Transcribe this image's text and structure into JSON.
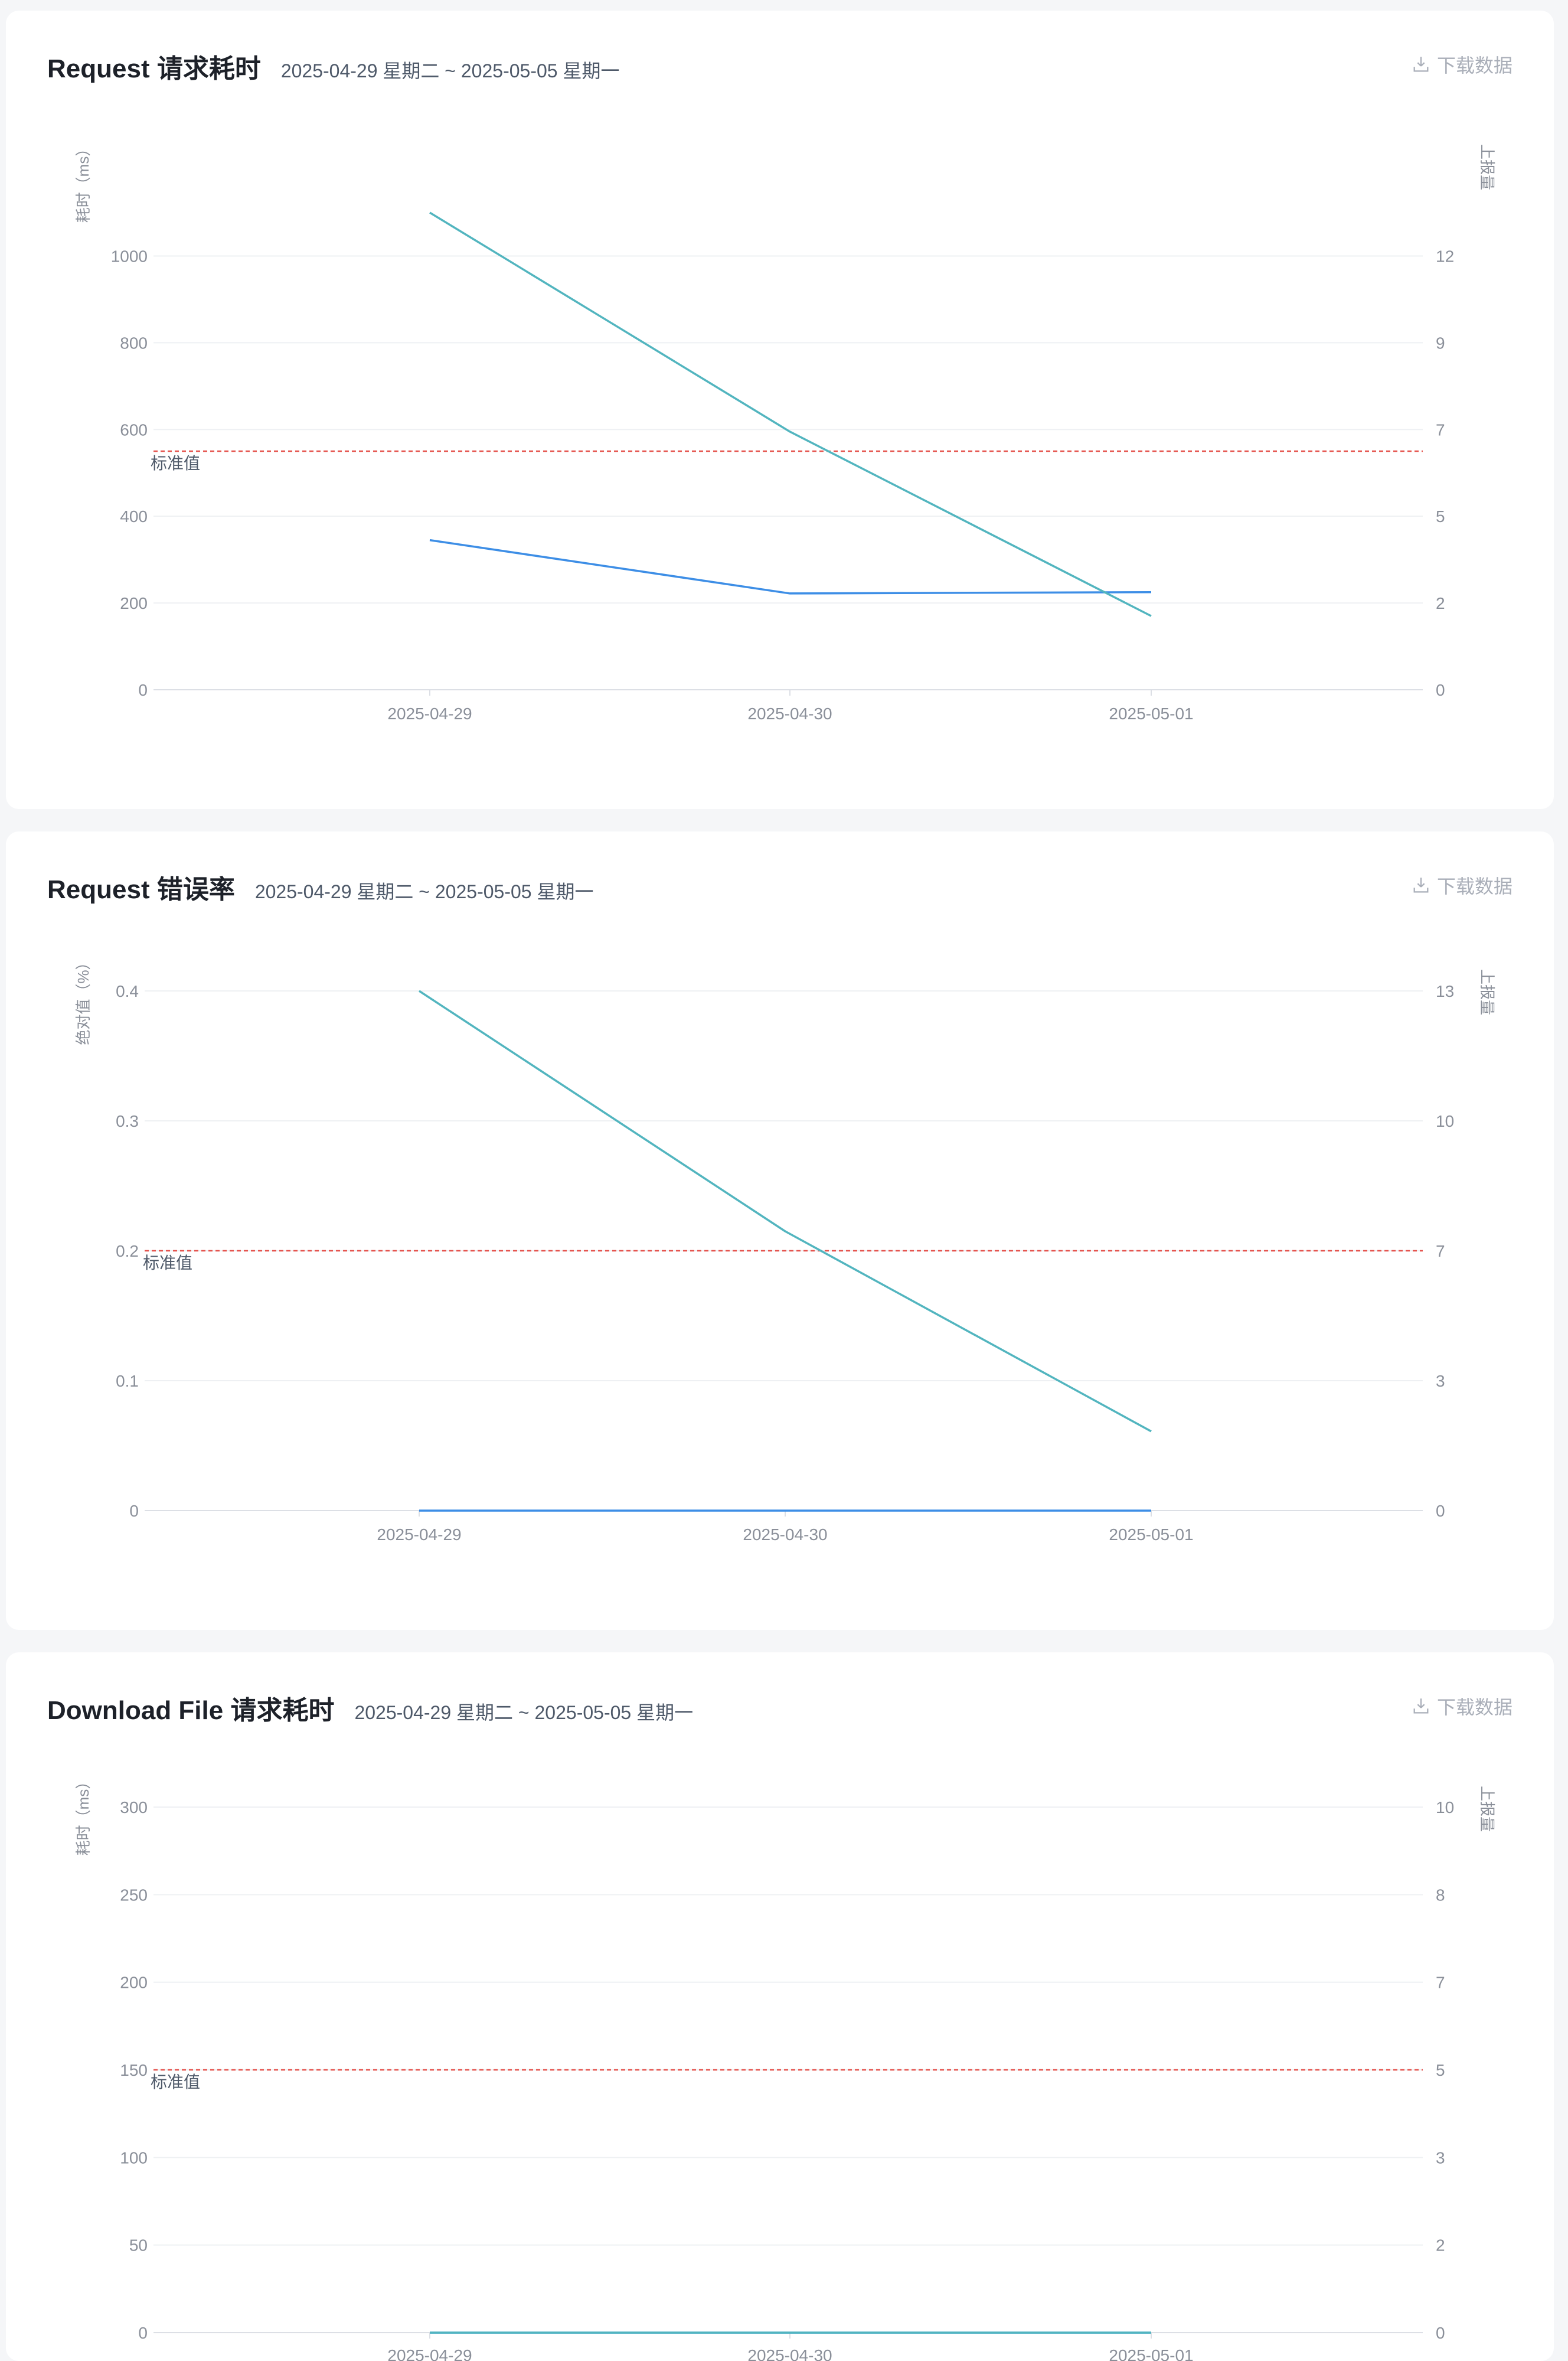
{
  "download_label": "下载数据",
  "colors": {
    "duration_line": "#3d8ee6",
    "report_line": "#52b5bf",
    "standard_line": "#e5554f",
    "grid": "#eef0f3",
    "axis_text": "#8a8f99"
  },
  "chart_data": [
    {
      "type": "line",
      "title": "Request 请求耗时",
      "range": "2025-04-29 星期二 ~ 2025-05-05 星期一",
      "ylabel": "耗时（ms）",
      "y2label": "上报量",
      "y_ticks": [
        "0",
        "200",
        "400",
        "600",
        "800",
        "1000"
      ],
      "y_tick_values": [
        0,
        200,
        400,
        600,
        800,
        1000
      ],
      "y_max": 1100,
      "y2_ticks": [
        "0",
        "2",
        "5",
        "7",
        "9",
        "12"
      ],
      "categories": [
        "2025-04-29",
        "2025-04-30",
        "2025-05-01"
      ],
      "standard_label": "标准值",
      "standard_value": 550,
      "series": [
        {
          "key": "duration",
          "values": [
            345,
            222,
            225
          ]
        },
        {
          "key": "report",
          "values": [
            1100,
            595,
            170
          ]
        }
      ],
      "grid": true
    },
    {
      "type": "line",
      "title": "Request 错误率",
      "range": "2025-04-29 星期二 ~ 2025-05-05 星期一",
      "ylabel": "绝对值（%）",
      "y2label": "上报量",
      "y_ticks": [
        "0",
        "0.1",
        "0.2",
        "0.3",
        "0.4"
      ],
      "y_tick_values": [
        0,
        0.1,
        0.2,
        0.3,
        0.4
      ],
      "y_max": 0.4,
      "y2_ticks": [
        "0",
        "3",
        "7",
        "10",
        "13"
      ],
      "categories": [
        "2025-04-29",
        "2025-04-30",
        "2025-05-01"
      ],
      "standard_label": "标准值",
      "standard_value": 0.2,
      "series": [
        {
          "key": "duration",
          "values": [
            0,
            0,
            0
          ]
        },
        {
          "key": "report",
          "values": [
            0.4,
            0.215,
            0.061
          ]
        }
      ],
      "grid": true
    },
    {
      "type": "line",
      "title": "Download File 请求耗时",
      "range": "2025-04-29 星期二 ~ 2025-05-05 星期一",
      "ylabel": "耗时（ms）",
      "y2label": "上报量",
      "y_ticks": [
        "0",
        "50",
        "100",
        "150",
        "200",
        "250",
        "300"
      ],
      "y_tick_values": [
        0,
        50,
        100,
        150,
        200,
        250,
        300
      ],
      "y_max": 300,
      "y2_ticks": [
        "0",
        "2",
        "3",
        "5",
        "7",
        "8",
        "10"
      ],
      "categories": [
        "2025-04-29",
        "2025-04-30",
        "2025-05-01"
      ],
      "standard_label": "标准值",
      "standard_value": 150,
      "series": [
        {
          "key": "duration",
          "values": [
            0,
            0,
            0
          ]
        },
        {
          "key": "report",
          "values": [
            0,
            0,
            0
          ]
        }
      ],
      "grid": true
    }
  ]
}
